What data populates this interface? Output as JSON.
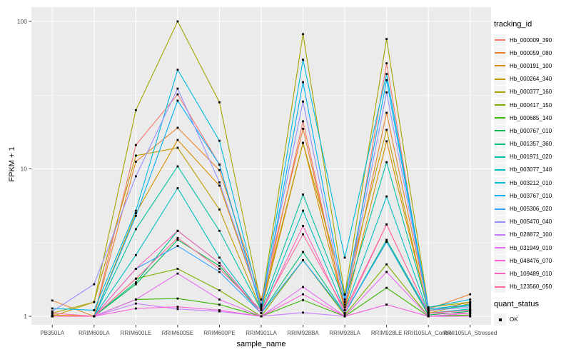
{
  "figure": {
    "background": "#FFFFFF",
    "panel_background": "#EBEBEB",
    "grid_color": "#FFFFFF",
    "tick_color": "#333333",
    "tick_label_color": "#4D4D4D",
    "legend_key_fill": "#F4F4F4"
  },
  "chart_data": {
    "type": "line",
    "title": "",
    "xlabel": "sample_name",
    "ylabel": "FPKM + 1",
    "x_categories": [
      "PB350LA",
      "RRIM600LA",
      "RRIM600LE",
      "RRIM600SE",
      "RRIM600PE",
      "RRIM901LA",
      "RRIM928BA",
      "RRIM928LA",
      "RRIM928LE",
      "RRII105LA_Control",
      "RRII105LA_Stressed"
    ],
    "y_scale": "log10",
    "y_ticks": [
      100,
      10,
      1
    ],
    "y_minor_ticks": [
      31.62,
      3.162
    ],
    "ylim": [
      0.88,
      125
    ],
    "grid": true,
    "legend_position": "right",
    "legend_title": "tracking_id",
    "point_marker": {
      "shape": "square",
      "color": "#000000",
      "size": 2.8
    },
    "quant_legend": {
      "title": "quant_status",
      "items": [
        {
          "label": "OK",
          "marker": "black-square"
        }
      ]
    },
    "series": [
      {
        "name": "Hb_000009_390",
        "color": "#F8766D",
        "values": [
          1.0,
          1.0,
          14.5,
          32,
          10.7,
          1.12,
          21,
          1.1,
          52,
          1.05,
          1.1
        ]
      },
      {
        "name": "Hb_000059_080",
        "color": "#EA8331",
        "values": [
          1.28,
          1.0,
          11.2,
          19,
          9.8,
          1.3,
          18.7,
          1.15,
          24,
          1.12,
          1.41
        ]
      },
      {
        "name": "Hb_000191_100",
        "color": "#D89000",
        "values": [
          1.02,
          1.0,
          5.0,
          15.7,
          7.7,
          1.18,
          15.0,
          1.1,
          15.4,
          1.08,
          1.25
        ]
      },
      {
        "name": "Hb_000264_340",
        "color": "#C09B00",
        "values": [
          1.0,
          1.25,
          12.3,
          13.9,
          5.3,
          1.1,
          15.0,
          1.41,
          18.4,
          1.05,
          1.22
        ]
      },
      {
        "name": "Hb_000377_160",
        "color": "#A3A500",
        "values": [
          1.05,
          1.25,
          25.0,
          100,
          28.3,
          1.2,
          82,
          1.4,
          76,
          1.15,
          1.25
        ]
      },
      {
        "name": "Hb_000417_150",
        "color": "#7CAE00",
        "values": [
          1.0,
          1.0,
          1.8,
          2.1,
          1.5,
          1.0,
          2.4,
          1.02,
          2.25,
          1.0,
          1.05
        ]
      },
      {
        "name": "Hb_000685_140",
        "color": "#39B600",
        "values": [
          1.0,
          1.0,
          1.3,
          1.32,
          1.2,
          1.0,
          1.29,
          1.0,
          1.56,
          1.0,
          1.02
        ]
      },
      {
        "name": "Hb_000767_010",
        "color": "#00BB4E",
        "values": [
          1.0,
          1.0,
          1.65,
          3.3,
          2.2,
          1.05,
          2.4,
          1.05,
          3.2,
          1.02,
          1.08
        ]
      },
      {
        "name": "Hb_001357_360",
        "color": "#00BF7D",
        "values": [
          1.0,
          1.0,
          1.7,
          3.8,
          2.3,
          1.05,
          2.73,
          1.05,
          3.3,
          1.05,
          1.1
        ]
      },
      {
        "name": "Hb_001971_020",
        "color": "#00C1A3",
        "values": [
          1.0,
          1.0,
          3.9,
          10.4,
          3.8,
          1.1,
          6.7,
          1.25,
          11.1,
          1.1,
          1.18
        ]
      },
      {
        "name": "Hb_003077_140",
        "color": "#00BFC4",
        "values": [
          1.0,
          1.0,
          2.6,
          7.4,
          2.5,
          1.05,
          5.2,
          1.1,
          6.5,
          1.05,
          1.12
        ]
      },
      {
        "name": "Hb_003212_010",
        "color": "#00BAE0",
        "values": [
          1.13,
          1.1,
          5.2,
          47,
          15.5,
          1.15,
          55,
          2.5,
          44,
          1.15,
          1.3
        ]
      },
      {
        "name": "Hb_003767_010",
        "color": "#00B0F6",
        "values": [
          1.0,
          1.0,
          4.8,
          29,
          10.7,
          1.1,
          38.7,
          1.3,
          40,
          1.12,
          1.2
        ]
      },
      {
        "name": "Hb_005306_020",
        "color": "#35A2FF",
        "values": [
          1.0,
          1.0,
          2.1,
          3.0,
          2.0,
          1.05,
          2.4,
          1.05,
          3.2,
          1.05,
          1.1
        ]
      },
      {
        "name": "Hb_005470_040",
        "color": "#9590FF",
        "values": [
          1.08,
          1.65,
          8.9,
          35,
          8.1,
          1.2,
          28.6,
          1.2,
          33,
          1.1,
          1.15
        ]
      },
      {
        "name": "Hb_028872_100",
        "color": "#C77CFF",
        "values": [
          1.0,
          1.0,
          1.22,
          1.12,
          1.08,
          1.0,
          1.06,
          1.0,
          1.2,
          1.0,
          1.0
        ]
      },
      {
        "name": "Hb_031949_010",
        "color": "#E76BF3",
        "values": [
          1.0,
          1.0,
          1.3,
          1.95,
          1.3,
          1.0,
          1.58,
          1.0,
          2.0,
          1.0,
          1.05
        ]
      },
      {
        "name": "Hb_048476_070",
        "color": "#FA62DB",
        "values": [
          1.0,
          1.0,
          1.13,
          1.16,
          1.1,
          1.0,
          1.41,
          1.0,
          1.2,
          1.0,
          1.0
        ]
      },
      {
        "name": "Hb_109489_010",
        "color": "#FF62BC",
        "values": [
          1.0,
          1.0,
          2.1,
          3.8,
          2.3,
          1.05,
          4.1,
          1.05,
          4.2,
          1.05,
          1.05
        ]
      },
      {
        "name": "Hb_123560_050",
        "color": "#FF6A98",
        "values": [
          1.05,
          1.0,
          1.8,
          3.4,
          2.1,
          1.1,
          3.6,
          1.1,
          4.2,
          1.05,
          1.1
        ]
      }
    ]
  }
}
